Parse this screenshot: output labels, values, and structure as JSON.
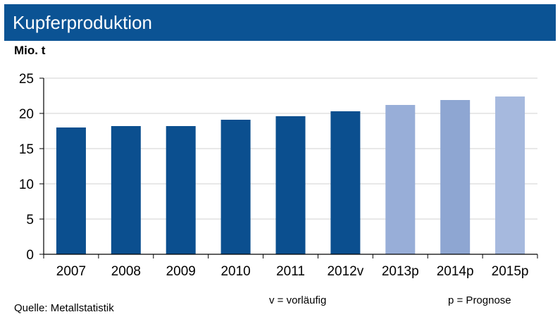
{
  "header": {
    "title": "Kupferproduktion"
  },
  "chart_data": {
    "type": "bar",
    "unit_label": "Mio. t",
    "categories": [
      "2007",
      "2008",
      "2009",
      "2010",
      "2011",
      "2012v",
      "2013p",
      "2014p",
      "2015p"
    ],
    "values": [
      18.0,
      18.2,
      18.2,
      19.1,
      19.6,
      20.3,
      21.2,
      21.9,
      22.4
    ],
    "ylim": [
      0,
      25
    ],
    "yticks": [
      0,
      5,
      10,
      15,
      20,
      25
    ],
    "grid": true,
    "colors": {
      "actual": "#0b4f8f",
      "forecast_2013": "#98aed8",
      "forecast_2014": "#8ea6d2",
      "forecast_2015": "#a6b9de",
      "grid": "#d0d0d0",
      "axis": "#000000"
    },
    "bar_colors": [
      "#0b4f8f",
      "#0b4f8f",
      "#0b4f8f",
      "#0b4f8f",
      "#0b4f8f",
      "#0b4f8f",
      "#98aed8",
      "#8ea6d2",
      "#a6b9de"
    ]
  },
  "footer": {
    "source": "Quelle:  Metallstatistik",
    "note_v": "v = vorläufig",
    "note_p": "p = Prognose"
  }
}
